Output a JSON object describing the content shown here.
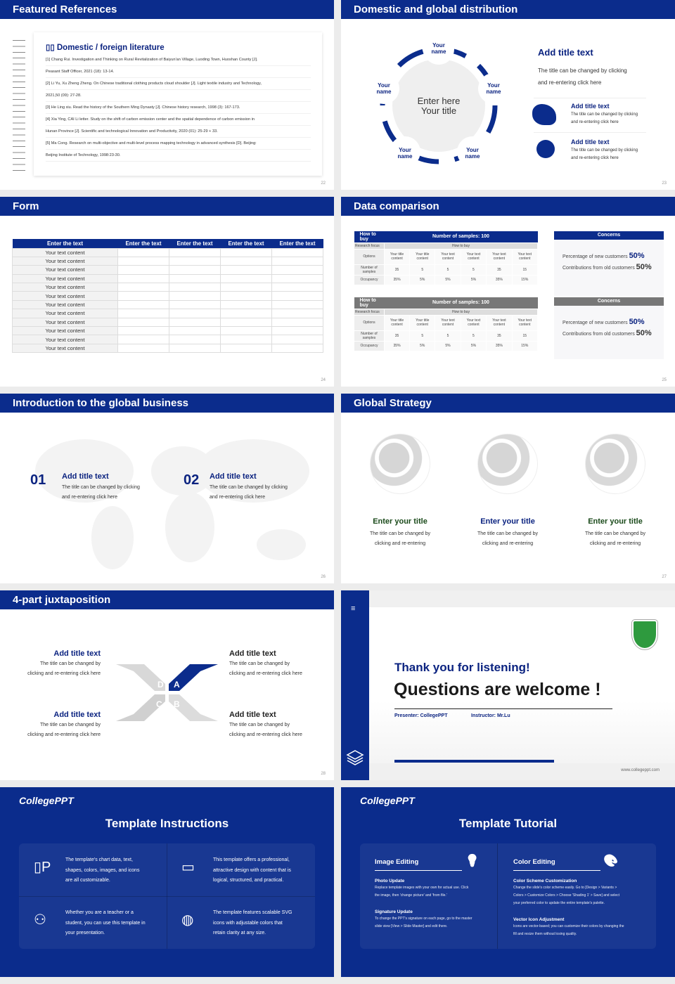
{
  "slides": {
    "s22": {
      "title": "Featured References",
      "heading": "Domestic / foreign literature",
      "page": "22",
      "lines": [
        "[1] Chang Rui. Investigation and Thinking on Rural Revitalization of Baiyun'an Village, Luoding Town, Huoshan County [J].",
        "Peasant Staff Officer, 2021 (18): 13-14.",
        "[2] Li Yu, Xu Zheng Zheng. On Chinese traditional clothing products cloud shoulder [J]. Light textile industry and Technology,",
        "2021,50 (09): 27-28.",
        "[3] He Ling xiu. Read the history of the Southern Ming Dynasty [J]. Chinese history research, 1998 (3): 167-173.",
        "[4] Xia Ying, CAI Li letter. Study on the shift of carbon emission center and the spatial dependence of carbon emission in",
        "Hunan Province [J]. Scientific and technological Innovation and Productivity, 2020 (01): 25-29 + 33.",
        "[5] Ma Cong. Research on multi-objective and multi-level process mapping technology in advanced synthesis [D]. Beijing:",
        "Beijing Institute of Technology, 1998:23-30."
      ]
    },
    "s23": {
      "title": "Domestic and global distribution",
      "page": "23",
      "center_line1": "Enter here",
      "center_line2": "Your title",
      "name": "Your name",
      "main_title": "Add title text",
      "main_text1": "The title can be changed by clicking",
      "main_text2": "and re-entering click here",
      "items": [
        {
          "title": "Add title text",
          "text1": "The title can be changed by clicking",
          "text2": "and re-entering click here",
          "icon": "china-map-icon"
        },
        {
          "title": "Add title text",
          "text1": "The title can be changed by clicking",
          "text2": "and re-entering click here",
          "icon": "globe-icon"
        }
      ]
    },
    "s24": {
      "title": "Form",
      "page": "24",
      "headers": [
        "Enter the text",
        "Enter the text",
        "Enter the text",
        "Enter the text",
        "Enter the text"
      ],
      "row_label": "Your text content",
      "row_count": 12
    },
    "s25": {
      "title": "Data comparison",
      "page": "25",
      "tables": [
        {
          "h1": "How to buy",
          "h2": "Number of samples: 100",
          "focus_label": "Research focus",
          "focus_value": "How to buy",
          "options_label": "Options",
          "options": [
            "Your title content",
            "Your title content",
            "Your text content",
            "Your text content",
            "Your text content",
            "Your text content"
          ],
          "samples_label": "Number of samples",
          "samples": [
            "35",
            "5",
            "5",
            "5",
            "35",
            "15"
          ],
          "occ_label": "Occupancy",
          "occ": [
            "35%",
            "5%",
            "5%",
            "5%",
            "35%",
            "15%"
          ],
          "color": "#0b2c8c"
        },
        {
          "h1": "How to buy",
          "h2": "Number of samples: 100",
          "focus_label": "Research focus",
          "focus_value": "How to buy",
          "options_label": "Options",
          "options": [
            "Your title content",
            "Your title content",
            "Your text content",
            "Your text content",
            "Your text content",
            "Your text content"
          ],
          "samples_label": "Number of samples",
          "samples": [
            "35",
            "5",
            "5",
            "5",
            "35",
            "15"
          ],
          "occ_label": "Occupancy",
          "occ": [
            "35%",
            "5%",
            "5%",
            "5%",
            "35%",
            "15%"
          ],
          "color": "#777777"
        }
      ],
      "concerns": [
        {
          "title": "Concerns",
          "l1": "Percentage of new customers",
          "v1": "50%",
          "l2": "Contributions from old customers",
          "v2": "50%",
          "color": "#0b2c8c"
        },
        {
          "title": "Concerns",
          "l1": "Percentage of new customers",
          "v1": "50%",
          "l2": "Contributions from old customers",
          "v2": "50%",
          "color": "#777777"
        }
      ]
    },
    "s26": {
      "title": "Introduction to the global business",
      "page": "26",
      "items": [
        {
          "num": "01",
          "title": "Add title text",
          "t1": "The title can be changed by clicking",
          "t2": "and re-entering click here"
        },
        {
          "num": "02",
          "title": "Add title text",
          "t1": "The title can be changed by clicking",
          "t2": "and re-entering click here"
        }
      ]
    },
    "s27": {
      "title": "Global Strategy",
      "page": "27",
      "items": [
        {
          "title": "Enter your title",
          "t1": "The title can be changed by",
          "t2": "clicking and re-entering",
          "color": "#1a4a1a"
        },
        {
          "title": "Enter your title",
          "t1": "The title can be changed by",
          "t2": "clicking and re-entering",
          "color": "#0b2380"
        },
        {
          "title": "Enter your title",
          "t1": "The title can be changed by",
          "t2": "clicking and re-entering",
          "color": "#1a4a1a"
        }
      ]
    },
    "s28": {
      "title": "4-part juxtaposition",
      "page": "28",
      "letters": [
        "A",
        "B",
        "C",
        "D"
      ],
      "items": [
        {
          "title": "Add title text",
          "t1": "The title can be changed by",
          "t2": "clicking and re-entering click here"
        },
        {
          "title": "Add title text",
          "t1": "The title can be changed by",
          "t2": "clicking and re-entering click here"
        },
        {
          "title": "Add title text",
          "t1": "The title can be changed by",
          "t2": "clicking and re-entering click here"
        },
        {
          "title": "Add title text",
          "t1": "The title can be changed by",
          "t2": "clicking and re-entering click here"
        }
      ]
    },
    "s29": {
      "thanks": "Thank you for listening!",
      "questions": "Questions are welcome !",
      "presenter": "Presenter: CollegePPT",
      "instructor": "Instructor: Mr.Lu",
      "url": "www.collegeppt.com"
    },
    "s30": {
      "logo": "CollegePPT",
      "title": "Template Instructions",
      "items": [
        {
          "icon": "ppt-file-icon",
          "lines": [
            "The template's chart data, text,",
            "shapes, colors, images, and icons",
            "are all customizable."
          ]
        },
        {
          "icon": "stack-window-icon",
          "lines": [
            "This template offers a professional,",
            "attractive design with content that is",
            "logical, structured, and practical."
          ]
        },
        {
          "icon": "teacher-board-icon",
          "lines": [
            "Whether you are a teacher or a",
            "student, you can use this template in",
            "your presentation."
          ]
        },
        {
          "icon": "basketball-icon",
          "lines": [
            "The template features scalable SVG",
            "icons with adjustable colors that",
            "retain clarity at any size."
          ]
        }
      ]
    },
    "s31": {
      "logo": "CollegePPT",
      "title": "Template Tutorial",
      "cols": [
        {
          "heading": "Image Editing",
          "icon": "lightbulb-icon",
          "sections": [
            {
              "title": "Photo Update",
              "lines": [
                "Replace template images with your own for actual use. Click",
                "the image, then 'change picture' and 'from file.'"
              ]
            },
            {
              "title": "Signature Update",
              "lines": [
                "To change the PPT's signature on each page, go to the master",
                "slide view [View > Slide Master] and edit there."
              ]
            }
          ]
        },
        {
          "heading": "Color Editing",
          "icon": "palette-icon",
          "sections": [
            {
              "title": "Color Scheme Customization",
              "lines": [
                "Change the slide's color scheme easily. Go to [Design > Variants >",
                "Colors > Customize Colors > Choose 'Shading 1' > Save] and select",
                "your preferred color to update the entire template's palette."
              ]
            },
            {
              "title": "Vector Icon Adjustment",
              "lines": [
                "Icons are vector-based; you can customize their colors by changing the",
                "fill and resize them without losing quality."
              ]
            }
          ]
        }
      ]
    }
  },
  "colors": {
    "brand": "#0b2c8c",
    "gray_header": "#777777"
  }
}
